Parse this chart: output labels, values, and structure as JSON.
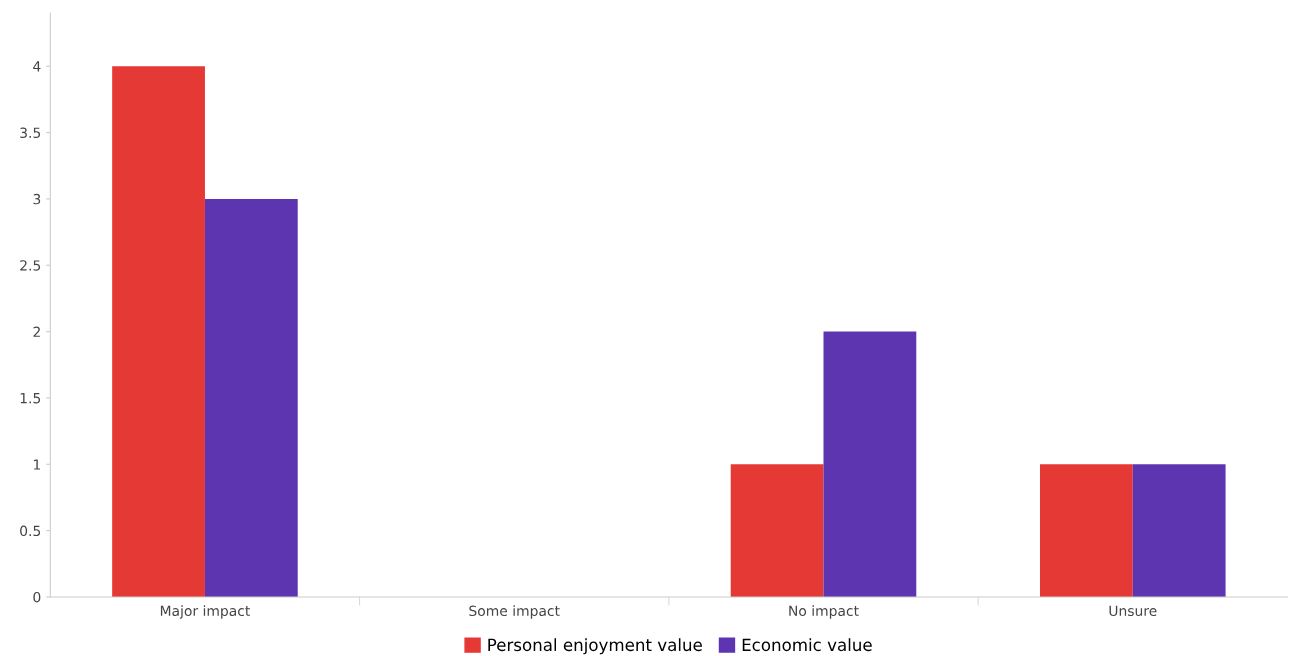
{
  "chart_data": {
    "type": "bar",
    "categories": [
      "Major impact",
      "Some impact",
      "No impact",
      "Unsure"
    ],
    "series": [
      {
        "name": "Personal enjoyment value",
        "color": "#e53935",
        "values": [
          4,
          0,
          1,
          1
        ]
      },
      {
        "name": "Economic value",
        "color": "#5e35b1",
        "values": [
          3,
          0,
          2,
          1
        ]
      }
    ],
    "ylim": [
      0,
      4.4
    ],
    "yticks": [
      0,
      0.5,
      1,
      1.5,
      2,
      2.5,
      3,
      3.5,
      4
    ],
    "grid": false,
    "legend": "bottom"
  }
}
